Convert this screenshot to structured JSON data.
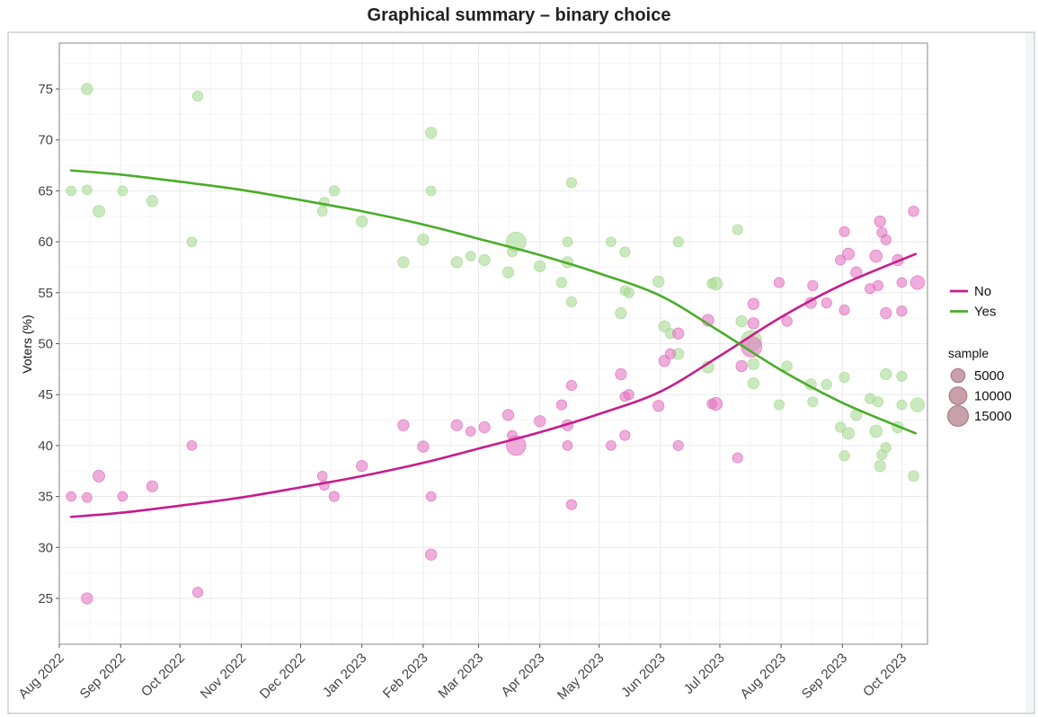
{
  "page": {
    "title": "Graphical summary – binary choice"
  },
  "chart_data": {
    "type": "scatter",
    "title": "Graphical summary – binary choice",
    "xlabel": "",
    "ylabel": "Voters (%)",
    "xlim": [
      "2022-08-01",
      "2023-10-14"
    ],
    "ylim": [
      20.5,
      79.5
    ],
    "yticks": [
      25,
      30,
      35,
      40,
      45,
      50,
      55,
      60,
      65,
      70,
      75
    ],
    "xticks": [
      {
        "date": "2022-08-01",
        "label": "Aug 2022"
      },
      {
        "date": "2022-09-01",
        "label": "Sep 2022"
      },
      {
        "date": "2022-10-01",
        "label": "Oct 2022"
      },
      {
        "date": "2022-11-01",
        "label": "Nov 2022"
      },
      {
        "date": "2022-12-01",
        "label": "Dec 2022"
      },
      {
        "date": "2023-01-01",
        "label": "Jan 2023"
      },
      {
        "date": "2023-02-01",
        "label": "Feb 2023"
      },
      {
        "date": "2023-03-01",
        "label": "Mar 2023"
      },
      {
        "date": "2023-04-01",
        "label": "Apr 2023"
      },
      {
        "date": "2023-05-01",
        "label": "May 2023"
      },
      {
        "date": "2023-06-01",
        "label": "Jun 2023"
      },
      {
        "date": "2023-07-01",
        "label": "Jul 2023"
      },
      {
        "date": "2023-08-01",
        "label": "Aug 2023"
      },
      {
        "date": "2023-09-01",
        "label": "Sep 2023"
      },
      {
        "date": "2023-10-01",
        "label": "Oct 2023"
      }
    ],
    "grid": true,
    "legend_position": "right",
    "series": [
      {
        "name": "No",
        "color": "#c71c8c",
        "point_color": "#e377c2",
        "trend": [
          [
            "2022-08-07",
            33.0
          ],
          [
            "2022-09-01",
            33.4
          ],
          [
            "2022-10-01",
            34.1
          ],
          [
            "2022-11-01",
            34.9
          ],
          [
            "2022-12-01",
            35.9
          ],
          [
            "2023-01-01",
            37.0
          ],
          [
            "2023-02-01",
            38.3
          ],
          [
            "2023-03-01",
            39.7
          ],
          [
            "2023-04-01",
            41.3
          ],
          [
            "2023-05-01",
            43.1
          ],
          [
            "2023-06-01",
            45.3
          ],
          [
            "2023-07-01",
            48.8
          ],
          [
            "2023-08-01",
            52.6
          ],
          [
            "2023-09-01",
            55.8
          ],
          [
            "2023-10-08",
            58.8
          ]
        ],
        "points": [
          [
            "2022-08-07",
            35.0,
            1500
          ],
          [
            "2022-08-15",
            34.9,
            1500
          ],
          [
            "2022-08-15",
            25.0,
            2500
          ],
          [
            "2022-08-21",
            37.0,
            3000
          ],
          [
            "2022-09-02",
            35.0,
            1500
          ],
          [
            "2022-09-17",
            36.0,
            2500
          ],
          [
            "2022-10-07",
            40.0,
            1500
          ],
          [
            "2022-10-10",
            25.6,
            1800
          ],
          [
            "2022-12-12",
            37.0,
            1500
          ],
          [
            "2022-12-13",
            36.1,
            1500
          ],
          [
            "2022-12-18",
            35.0,
            1800
          ],
          [
            "2023-01-01",
            38.0,
            2500
          ],
          [
            "2023-01-22",
            42.0,
            2500
          ],
          [
            "2023-02-01",
            39.9,
            2500
          ],
          [
            "2023-02-05",
            35.0,
            1500
          ],
          [
            "2023-02-05",
            29.3,
            2500
          ],
          [
            "2023-02-18",
            42.0,
            2500
          ],
          [
            "2023-02-25",
            41.4,
            1500
          ],
          [
            "2023-03-04",
            41.8,
            2500
          ],
          [
            "2023-03-16",
            43.0,
            2500
          ],
          [
            "2023-03-18",
            41.0,
            1500
          ],
          [
            "2023-03-20",
            40.0,
            13000
          ],
          [
            "2023-04-01",
            42.4,
            2500
          ],
          [
            "2023-04-12",
            44.0,
            1800
          ],
          [
            "2023-04-15",
            42.0,
            2500
          ],
          [
            "2023-04-15",
            40.0,
            1500
          ],
          [
            "2023-04-17",
            45.9,
            1800
          ],
          [
            "2023-04-17",
            34.2,
            1800
          ],
          [
            "2023-05-07",
            40.0,
            1500
          ],
          [
            "2023-05-12",
            47.0,
            2500
          ],
          [
            "2023-05-14",
            44.8,
            1500
          ],
          [
            "2023-05-14",
            41.0,
            1800
          ],
          [
            "2023-05-16",
            45.0,
            1800
          ],
          [
            "2023-05-31",
            43.9,
            2500
          ],
          [
            "2023-06-03",
            48.3,
            2500
          ],
          [
            "2023-06-06",
            49.0,
            1800
          ],
          [
            "2023-06-10",
            51.0,
            2500
          ],
          [
            "2023-06-10",
            40.0,
            1800
          ],
          [
            "2023-06-25",
            52.3,
            3000
          ],
          [
            "2023-06-27",
            44.1,
            1500
          ],
          [
            "2023-06-29",
            44.1,
            4000
          ],
          [
            "2023-07-10",
            38.8,
            1800
          ],
          [
            "2023-07-12",
            47.8,
            2500
          ],
          [
            "2023-07-18",
            52.0,
            2500
          ],
          [
            "2023-07-18",
            53.9,
            2500
          ],
          [
            "2023-07-17",
            49.7,
            15000
          ],
          [
            "2023-07-31",
            56.0,
            1800
          ],
          [
            "2023-08-04",
            52.2,
            1800
          ],
          [
            "2023-08-16",
            54.0,
            2500
          ],
          [
            "2023-08-17",
            55.7,
            1800
          ],
          [
            "2023-08-24",
            54.0,
            1800
          ],
          [
            "2023-08-31",
            58.2,
            1800
          ],
          [
            "2023-09-02",
            53.3,
            1800
          ],
          [
            "2023-09-02",
            61.0,
            1800
          ],
          [
            "2023-09-04",
            58.8,
            3000
          ],
          [
            "2023-09-08",
            57.0,
            2500
          ],
          [
            "2023-09-15",
            55.4,
            1800
          ],
          [
            "2023-09-18",
            58.6,
            3500
          ],
          [
            "2023-09-19",
            55.7,
            1800
          ],
          [
            "2023-09-20",
            62.0,
            2500
          ],
          [
            "2023-09-21",
            60.9,
            1800
          ],
          [
            "2023-09-23",
            60.2,
            1800
          ],
          [
            "2023-09-23",
            53.0,
            2500
          ],
          [
            "2023-09-29",
            58.2,
            2500
          ],
          [
            "2023-10-01",
            56.0,
            1500
          ],
          [
            "2023-10-01",
            53.2,
            1800
          ],
          [
            "2023-10-07",
            63.0,
            2000
          ],
          [
            "2023-10-09",
            56.0,
            5000
          ]
        ]
      },
      {
        "name": "Yes",
        "color": "#4aac29",
        "point_color": "#a8db93",
        "trend": [
          [
            "2022-08-07",
            67.0
          ],
          [
            "2022-09-01",
            66.6
          ],
          [
            "2022-10-01",
            65.9
          ],
          [
            "2022-11-01",
            65.1
          ],
          [
            "2022-12-01",
            64.1
          ],
          [
            "2023-01-01",
            63.0
          ],
          [
            "2023-02-01",
            61.7
          ],
          [
            "2023-03-01",
            60.3
          ],
          [
            "2023-04-01",
            58.7
          ],
          [
            "2023-05-01",
            56.9
          ],
          [
            "2023-06-01",
            54.7
          ],
          [
            "2023-07-01",
            51.2
          ],
          [
            "2023-08-01",
            47.4
          ],
          [
            "2023-09-01",
            44.2
          ],
          [
            "2023-10-08",
            41.2
          ]
        ],
        "points": [
          [
            "2022-08-07",
            65.0,
            1500
          ],
          [
            "2022-08-15",
            65.1,
            1500
          ],
          [
            "2022-08-15",
            75.0,
            2500
          ],
          [
            "2022-08-21",
            63.0,
            3000
          ],
          [
            "2022-09-02",
            65.0,
            1500
          ],
          [
            "2022-09-17",
            64.0,
            2500
          ],
          [
            "2022-10-07",
            60.0,
            1500
          ],
          [
            "2022-10-10",
            74.3,
            1800
          ],
          [
            "2022-12-12",
            63.0,
            1500
          ],
          [
            "2022-12-13",
            63.9,
            1500
          ],
          [
            "2022-12-18",
            65.0,
            1800
          ],
          [
            "2023-01-01",
            62.0,
            2500
          ],
          [
            "2023-01-22",
            58.0,
            2500
          ],
          [
            "2023-02-01",
            60.2,
            2500
          ],
          [
            "2023-02-05",
            65.0,
            1500
          ],
          [
            "2023-02-05",
            70.7,
            2500
          ],
          [
            "2023-02-18",
            58.0,
            2500
          ],
          [
            "2023-02-25",
            58.6,
            1500
          ],
          [
            "2023-03-04",
            58.2,
            2500
          ],
          [
            "2023-03-16",
            57.0,
            2500
          ],
          [
            "2023-03-18",
            59.0,
            1500
          ],
          [
            "2023-03-20",
            60.0,
            13000
          ],
          [
            "2023-04-01",
            57.6,
            2500
          ],
          [
            "2023-04-12",
            56.0,
            1800
          ],
          [
            "2023-04-15",
            58.0,
            2500
          ],
          [
            "2023-04-15",
            60.0,
            1500
          ],
          [
            "2023-04-17",
            54.1,
            1800
          ],
          [
            "2023-04-17",
            65.8,
            1800
          ],
          [
            "2023-05-07",
            60.0,
            1500
          ],
          [
            "2023-05-12",
            53.0,
            2500
          ],
          [
            "2023-05-14",
            55.2,
            1500
          ],
          [
            "2023-05-14",
            59.0,
            1800
          ],
          [
            "2023-05-16",
            55.0,
            1800
          ],
          [
            "2023-05-31",
            56.1,
            2500
          ],
          [
            "2023-06-03",
            51.7,
            2500
          ],
          [
            "2023-06-06",
            51.0,
            1800
          ],
          [
            "2023-06-10",
            49.0,
            2500
          ],
          [
            "2023-06-10",
            60.0,
            1800
          ],
          [
            "2023-06-25",
            47.7,
            3000
          ],
          [
            "2023-06-27",
            55.9,
            1500
          ],
          [
            "2023-06-29",
            55.9,
            4000
          ],
          [
            "2023-07-10",
            61.2,
            1800
          ],
          [
            "2023-07-12",
            52.2,
            2500
          ],
          [
            "2023-07-18",
            48.0,
            2500
          ],
          [
            "2023-07-18",
            46.1,
            2500
          ],
          [
            "2023-07-17",
            50.3,
            15000
          ],
          [
            "2023-07-31",
            44.0,
            1800
          ],
          [
            "2023-08-04",
            47.8,
            1800
          ],
          [
            "2023-08-16",
            46.0,
            2500
          ],
          [
            "2023-08-17",
            44.3,
            1800
          ],
          [
            "2023-08-24",
            46.0,
            1800
          ],
          [
            "2023-08-31",
            41.8,
            1800
          ],
          [
            "2023-09-02",
            46.7,
            1800
          ],
          [
            "2023-09-02",
            39.0,
            1800
          ],
          [
            "2023-09-04",
            41.2,
            3000
          ],
          [
            "2023-09-08",
            43.0,
            2500
          ],
          [
            "2023-09-15",
            44.6,
            1800
          ],
          [
            "2023-09-18",
            41.4,
            3500
          ],
          [
            "2023-09-19",
            44.3,
            1800
          ],
          [
            "2023-09-20",
            38.0,
            2500
          ],
          [
            "2023-09-21",
            39.1,
            1800
          ],
          [
            "2023-09-23",
            39.8,
            1800
          ],
          [
            "2023-09-23",
            47.0,
            2500
          ],
          [
            "2023-09-29",
            41.8,
            2500
          ],
          [
            "2023-10-01",
            44.0,
            1500
          ],
          [
            "2023-10-01",
            46.8,
            1800
          ],
          [
            "2023-10-07",
            37.0,
            2000
          ],
          [
            "2023-10-09",
            44.0,
            5000
          ]
        ]
      }
    ],
    "size_legend": {
      "title": "sample",
      "values": [
        5000,
        10000,
        15000
      ],
      "labels": [
        "5000",
        "10000",
        "15000"
      ],
      "color": "#c9a0aa",
      "stroke": "#a67c87"
    },
    "colors": {
      "panel_background": "#ffffff",
      "grid_major": "#ebebeb",
      "grid_minor": "#f5f5f5",
      "panel_border": "#888888",
      "outer_border": "#b4b4b4"
    }
  }
}
